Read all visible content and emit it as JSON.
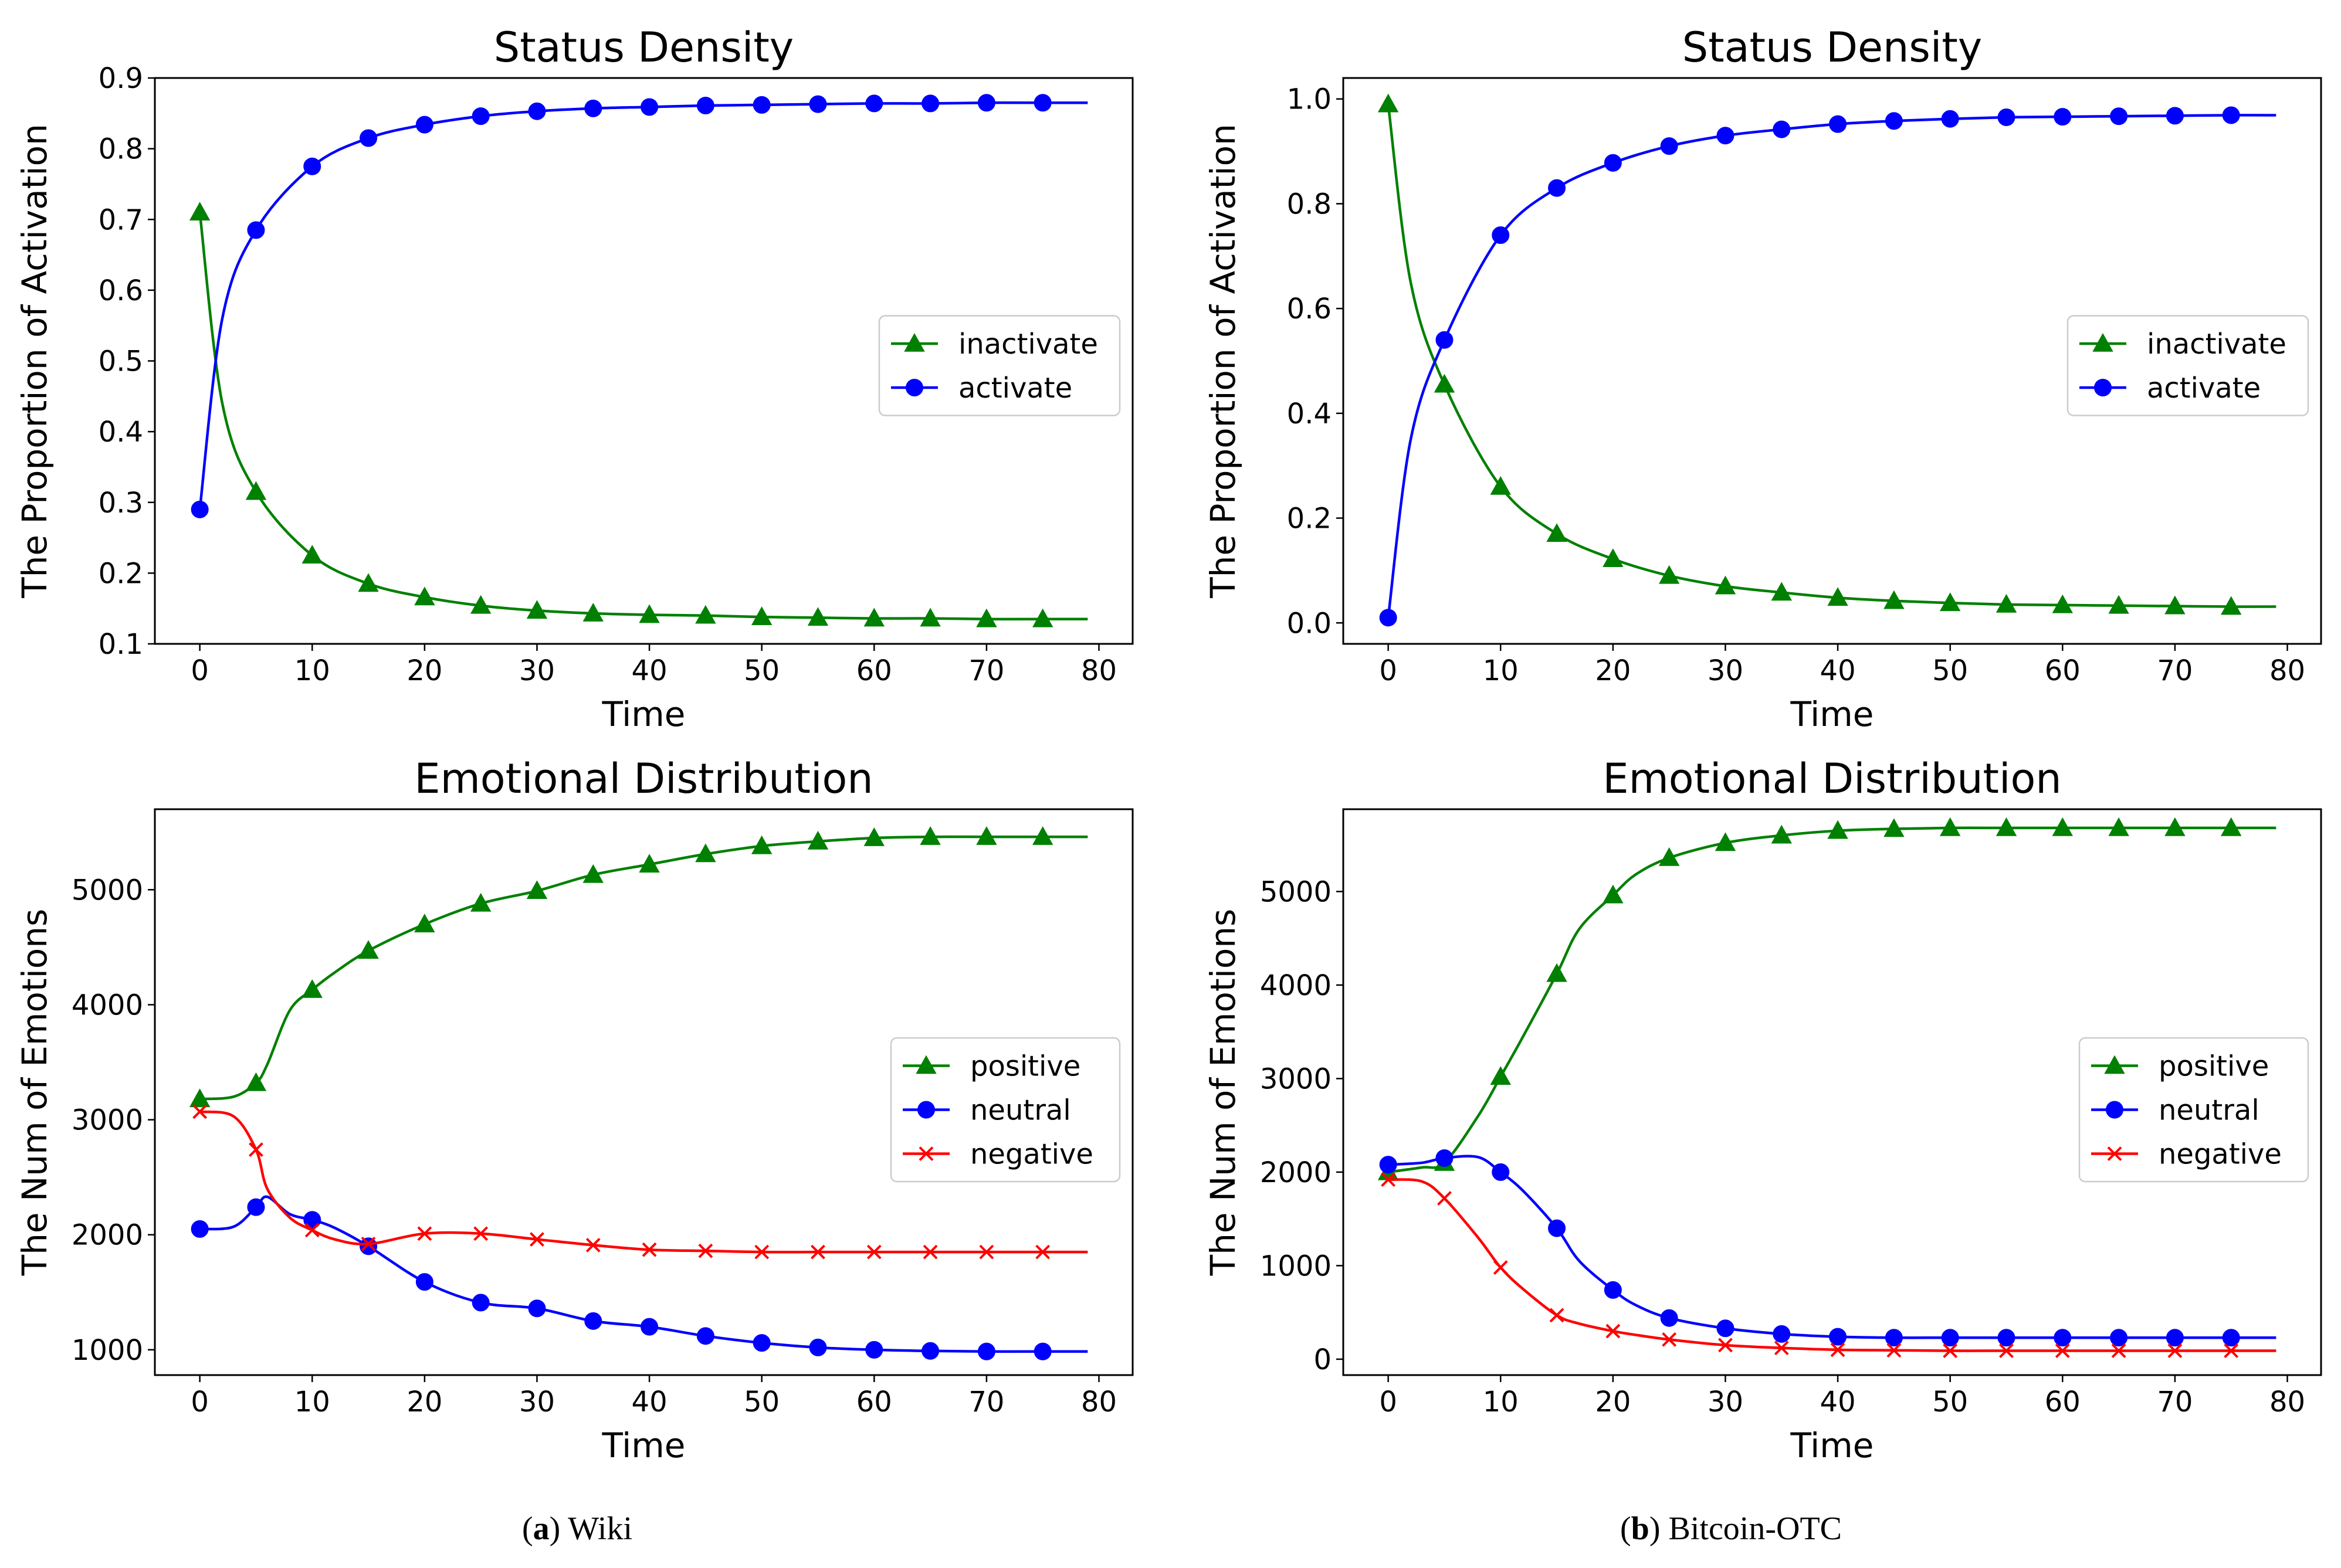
{
  "chart_data": [
    {
      "type": "line",
      "title": "Status Density",
      "xlabel": "Time",
      "ylabel": "The Proportion of Activation",
      "xlim": [
        -4,
        83
      ],
      "ylim": [
        0.1,
        0.9
      ],
      "xticks": [
        0,
        10,
        20,
        30,
        40,
        50,
        60,
        70,
        80
      ],
      "yticks": [
        0.1,
        0.2,
        0.3,
        0.4,
        0.5,
        0.6,
        0.7,
        0.8,
        0.9
      ],
      "ytick_labels": [
        "0.1",
        "0.2",
        "0.3",
        "0.4",
        "0.5",
        "0.6",
        "0.7",
        "0.8",
        "0.9"
      ],
      "grid": false,
      "legend_position": "center-right",
      "x": [
        0,
        2,
        5,
        10,
        15,
        20,
        25,
        30,
        35,
        40,
        45,
        50,
        55,
        60,
        65,
        70,
        75,
        79
      ],
      "marker_every": 5,
      "series": [
        {
          "name": "inactivate",
          "color": "#008000",
          "marker": "triangle",
          "values": [
            0.71,
            0.44,
            0.315,
            0.225,
            0.185,
            0.166,
            0.154,
            0.147,
            0.143,
            0.141,
            0.14,
            0.138,
            0.137,
            0.136,
            0.136,
            0.135,
            0.135,
            0.135
          ]
        },
        {
          "name": "activate",
          "color": "#0000ff",
          "marker": "circle",
          "values": [
            0.29,
            0.56,
            0.685,
            0.775,
            0.815,
            0.834,
            0.846,
            0.853,
            0.857,
            0.859,
            0.861,
            0.862,
            0.863,
            0.864,
            0.864,
            0.865,
            0.865,
            0.865
          ]
        }
      ]
    },
    {
      "type": "line",
      "title": "Status Density",
      "xlabel": "Time",
      "ylabel": "The Proportion of Activation",
      "xlim": [
        -4,
        83
      ],
      "ylim": [
        -0.04,
        1.04
      ],
      "xticks": [
        0,
        10,
        20,
        30,
        40,
        50,
        60,
        70,
        80
      ],
      "yticks": [
        0,
        0.2,
        0.4,
        0.6,
        0.8,
        1.0
      ],
      "ytick_labels": [
        "0.0",
        "0.2",
        "0.4",
        "0.6",
        "0.8",
        "1.0"
      ],
      "grid": false,
      "legend_position": "center-right",
      "x": [
        0,
        2,
        5,
        10,
        15,
        20,
        25,
        30,
        35,
        40,
        45,
        50,
        55,
        60,
        65,
        70,
        75,
        79
      ],
      "marker_every": 5,
      "series": [
        {
          "name": "inactivate",
          "color": "#008000",
          "marker": "triangle",
          "values": [
            0.99,
            0.65,
            0.455,
            0.26,
            0.17,
            0.122,
            0.09,
            0.07,
            0.058,
            0.048,
            0.042,
            0.038,
            0.035,
            0.034,
            0.033,
            0.032,
            0.031,
            0.031
          ]
        },
        {
          "name": "activate",
          "color": "#0000ff",
          "marker": "circle",
          "values": [
            0.01,
            0.35,
            0.54,
            0.74,
            0.83,
            0.878,
            0.91,
            0.93,
            0.942,
            0.952,
            0.958,
            0.962,
            0.965,
            0.966,
            0.967,
            0.968,
            0.969,
            0.969
          ]
        }
      ]
    },
    {
      "type": "line",
      "title": "Emotional Distribution",
      "xlabel": "Time",
      "ylabel": "The Num of Emotions",
      "xlim": [
        -4,
        83
      ],
      "ylim": [
        780,
        5700
      ],
      "xticks": [
        0,
        10,
        20,
        30,
        40,
        50,
        60,
        70,
        80
      ],
      "yticks": [
        1000,
        2000,
        3000,
        4000,
        5000
      ],
      "ytick_labels": [
        "1000",
        "2000",
        "3000",
        "4000",
        "5000"
      ],
      "grid": false,
      "legend_position": "center-right",
      "x": [
        0,
        3,
        5,
        6,
        8,
        10,
        12,
        15,
        20,
        25,
        30,
        35,
        40,
        45,
        50,
        55,
        60,
        65,
        70,
        75,
        79
      ],
      "marker_every": 5,
      "series": [
        {
          "name": "positive",
          "color": "#008000",
          "marker": "triangle",
          "values": [
            3180,
            3200,
            3320,
            3480,
            3950,
            4130,
            4280,
            4470,
            4700,
            4880,
            4990,
            5130,
            5220,
            5310,
            5380,
            5420,
            5450,
            5460,
            5460,
            5460,
            5460
          ]
        },
        {
          "name": "neutral",
          "color": "#0000ff",
          "marker": "circle",
          "values": [
            2050,
            2070,
            2240,
            2330,
            2180,
            2130,
            2060,
            1900,
            1590,
            1410,
            1360,
            1250,
            1200,
            1120,
            1060,
            1020,
            1000,
            990,
            985,
            985,
            985
          ]
        },
        {
          "name": "negative",
          "color": "#ff0000",
          "marker": "x",
          "values": [
            3070,
            3030,
            2740,
            2400,
            2150,
            2040,
            1960,
            1920,
            2010,
            2010,
            1960,
            1910,
            1870,
            1860,
            1850,
            1850,
            1850,
            1850,
            1850,
            1850,
            1850
          ]
        }
      ]
    },
    {
      "type": "line",
      "title": "Emotional Distribution",
      "xlabel": "Time",
      "ylabel": "The Num of Emotions",
      "xlim": [
        -4,
        83
      ],
      "ylim": [
        -170,
        5880
      ],
      "xticks": [
        0,
        10,
        20,
        30,
        40,
        50,
        60,
        70,
        80
      ],
      "yticks": [
        0,
        1000,
        2000,
        3000,
        4000,
        5000
      ],
      "ytick_labels": [
        "0",
        "1000",
        "2000",
        "3000",
        "4000",
        "5000"
      ],
      "grid": false,
      "legend_position": "center-right",
      "x": [
        0,
        3,
        5,
        8,
        10,
        12,
        15,
        17,
        20,
        22,
        25,
        30,
        35,
        40,
        45,
        50,
        55,
        60,
        65,
        70,
        75,
        79
      ],
      "marker_every": 5,
      "series": [
        {
          "name": "positive",
          "color": "#008000",
          "marker": "triangle",
          "values": [
            2000,
            2050,
            2100,
            2600,
            3020,
            3450,
            4120,
            4600,
            4960,
            5180,
            5360,
            5520,
            5600,
            5650,
            5670,
            5680,
            5680,
            5680,
            5680,
            5680,
            5680,
            5680
          ]
        },
        {
          "name": "neutral",
          "color": "#0000ff",
          "marker": "circle",
          "values": [
            2080,
            2100,
            2150,
            2160,
            2000,
            1800,
            1400,
            1050,
            740,
            580,
            440,
            330,
            270,
            240,
            230,
            230,
            230,
            230,
            230,
            230,
            230,
            230
          ]
        },
        {
          "name": "negative",
          "color": "#ff0000",
          "marker": "x",
          "values": [
            1920,
            1900,
            1720,
            1300,
            980,
            750,
            470,
            380,
            300,
            260,
            210,
            150,
            120,
            100,
            95,
            90,
            90,
            90,
            90,
            90,
            90,
            90
          ]
        }
      ]
    }
  ],
  "captions": [
    {
      "letter": "a",
      "text": "Wiki"
    },
    {
      "letter": "b",
      "text": "Bitcoin-OTC"
    }
  ],
  "colors": {
    "inactivate": "#008000",
    "activate": "#0000ff",
    "positive": "#008000",
    "neutral": "#0000ff",
    "negative": "#ff0000"
  }
}
